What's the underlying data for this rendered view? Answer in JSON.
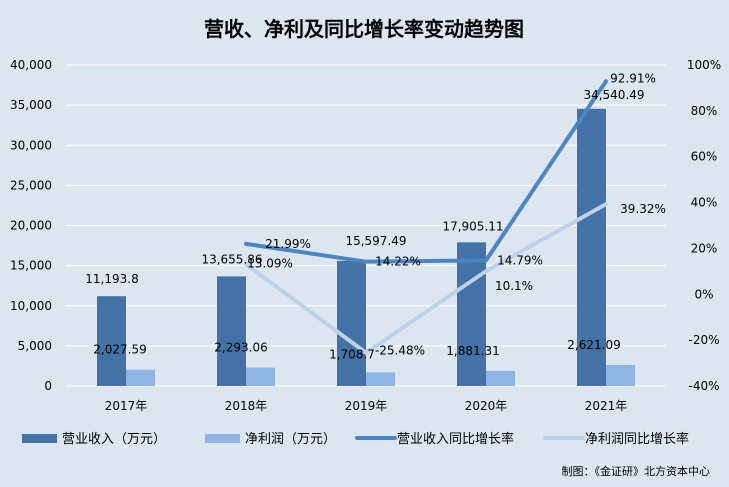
{
  "colors": {
    "background": "#dce6f1",
    "revenue_bar": "#4472a6",
    "profit_bar": "#8db4e2",
    "revenue_line": "#4a86c4",
    "profit_line": "#bcd1ea",
    "grid": "#ffffff"
  },
  "chart_data": {
    "type": "bar",
    "title": "营收、净利及同比增长率变动趋势图",
    "source": "制图：《金证研》北方资本中心",
    "categories": [
      "2017年",
      "2018年",
      "2019年",
      "2020年",
      "2021年"
    ],
    "y_left": {
      "ylim": [
        0,
        40000
      ],
      "ticks": [
        "0",
        "5,000",
        "10,000",
        "15,000",
        "20,000",
        "25,000",
        "30,000",
        "35,000",
        "40,000"
      ]
    },
    "y_right": {
      "ylim": [
        -40,
        100
      ],
      "ticks": [
        "-40%",
        "-20%",
        "0%",
        "20%",
        "40%",
        "60%",
        "80%",
        "100%"
      ]
    },
    "grid": true,
    "legend_position": "bottom",
    "series": [
      {
        "name": "营业收入（万元）",
        "type": "bar",
        "axis": "left",
        "values": [
          11193.8,
          13655.86,
          15597.49,
          17905.11,
          34540.49
        ],
        "labels": [
          "11,193.8",
          "13,655.86",
          "15,597.49",
          "17,905.11",
          "34,540.49"
        ]
      },
      {
        "name": "净利润（万元）",
        "type": "bar",
        "axis": "left",
        "values": [
          2027.59,
          2293.06,
          1708.7,
          1881.31,
          2621.09
        ],
        "labels": [
          "2,027.59",
          "2,293.06",
          "1,708.7",
          "1,881.31",
          "2,621.09"
        ]
      },
      {
        "name": "营业收入同比增长率",
        "type": "line",
        "axis": "right",
        "values": [
          null,
          21.99,
          14.22,
          14.79,
          92.91
        ],
        "labels": [
          null,
          "21.99%",
          "14.22%",
          "14.79%",
          "92.91%"
        ]
      },
      {
        "name": "净利润同比增长率",
        "type": "line",
        "axis": "right",
        "values": [
          null,
          13.09,
          -25.48,
          10.1,
          39.32
        ],
        "labels": [
          null,
          "13.09%",
          "-25.48%",
          "10.1%",
          "39.32%"
        ]
      }
    ]
  }
}
